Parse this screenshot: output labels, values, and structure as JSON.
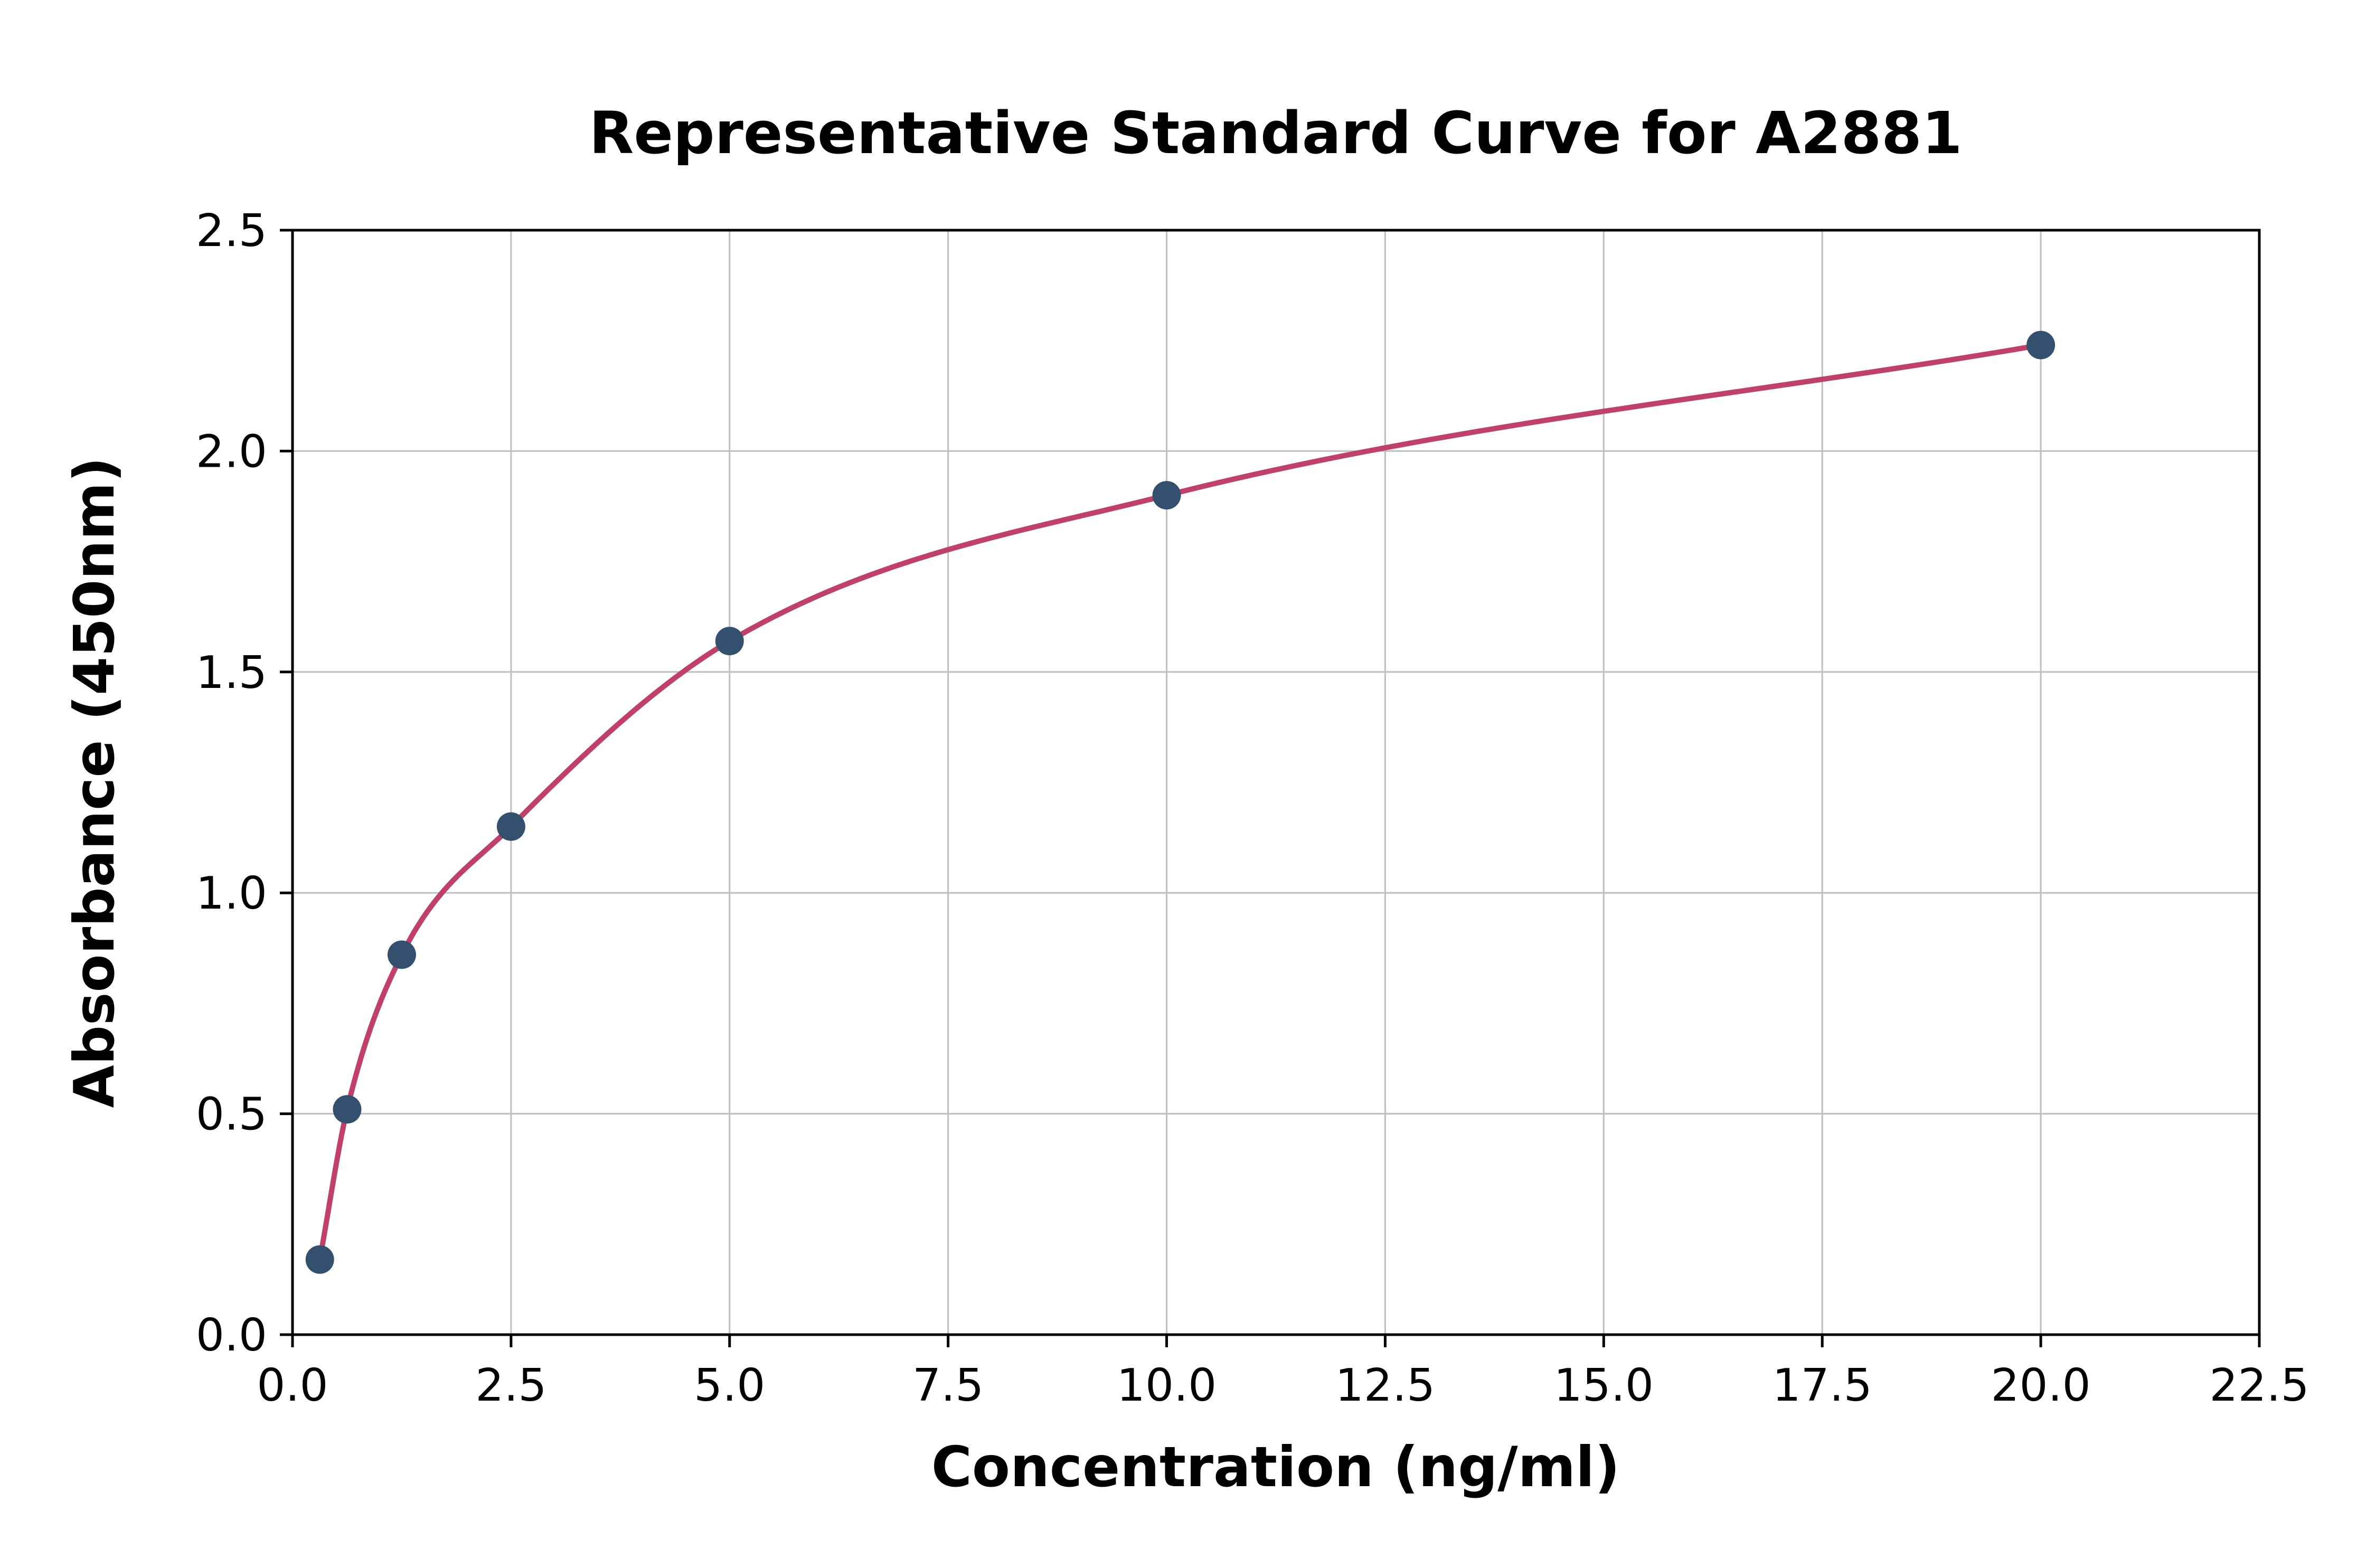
{
  "chart_data": {
    "type": "scatter",
    "title": "Representative Standard Curve for A2881",
    "xlabel": "Concentration (ng/ml)",
    "ylabel": "Absorbance (450nm)",
    "x": [
      0.3125,
      0.625,
      1.25,
      2.5,
      5.0,
      10.0,
      20.0
    ],
    "y": [
      0.17,
      0.51,
      0.86,
      1.15,
      1.57,
      1.9,
      2.24
    ],
    "xlim": [
      0,
      22.5
    ],
    "ylim": [
      0,
      2.5
    ],
    "xticks": [
      0.0,
      2.5,
      5.0,
      7.5,
      10.0,
      12.5,
      15.0,
      17.5,
      20.0,
      22.5
    ],
    "yticks": [
      0.0,
      0.5,
      1.0,
      1.5,
      2.0,
      2.5
    ],
    "tick_decimals": 1,
    "grid": true,
    "legend": "none",
    "curve_style": "smooth fit through points",
    "colors": {
      "marker": "#33516e",
      "curve": "#c0406a",
      "grid": "#bfbfbf",
      "axis": "#000000",
      "background": "#ffffff"
    }
  }
}
